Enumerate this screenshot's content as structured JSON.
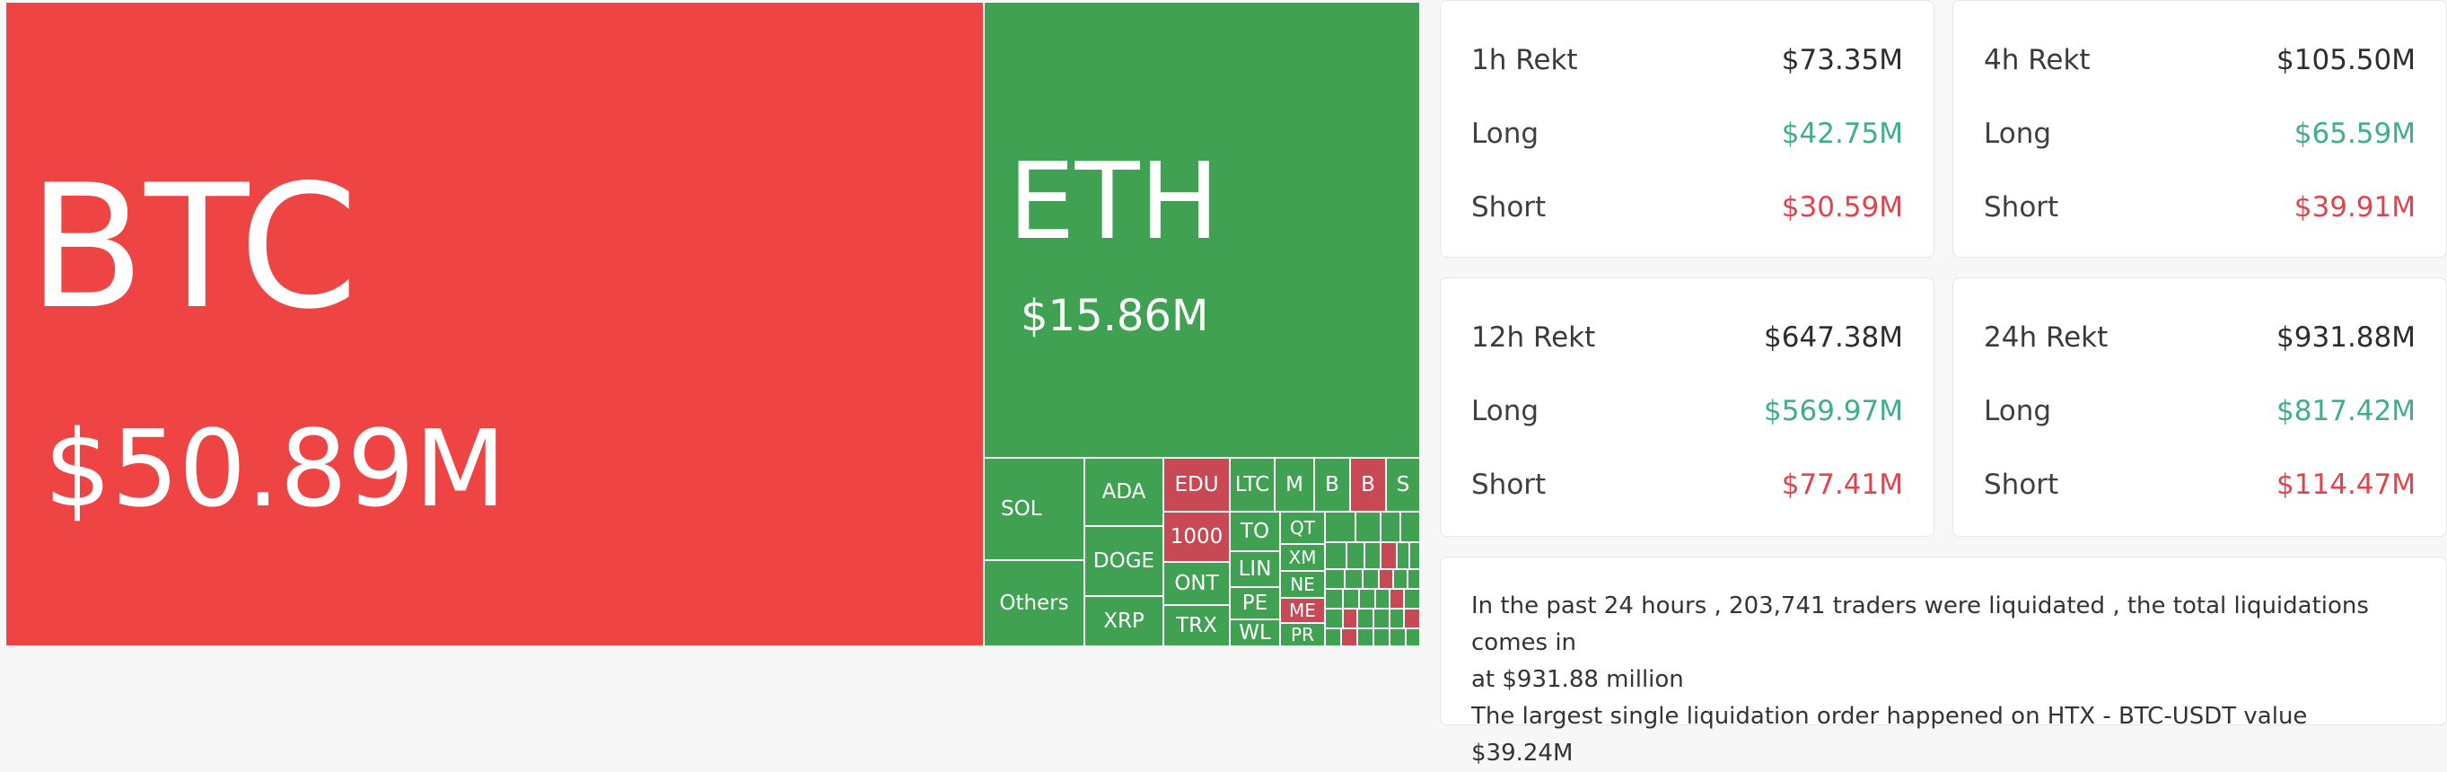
{
  "treemap": {
    "btc": {
      "symbol": "BTC",
      "value": "$50.89M"
    },
    "eth": {
      "symbol": "ETH",
      "value": "$15.86M"
    },
    "small": {
      "sol": "SOL",
      "others": "Others",
      "ada": "ADA",
      "doge": "DOGE",
      "xrp": "XRP",
      "edu": "EDU",
      "k1000": "1000",
      "ont": "ONT",
      "trx": "TRX",
      "ltc": "LTC",
      "m": "M",
      "b1": "B",
      "b2": "B",
      "s": "S",
      "to": "TO",
      "lin": "LIN",
      "pe": "PE",
      "wl": "WL",
      "qt": "QT",
      "xm": "XM",
      "ne": "NE",
      "me": "ME",
      "pr": "PR"
    }
  },
  "colors": {
    "up": "#41a153",
    "down": "#ef4444",
    "down_small": "#c84953",
    "long": "#3fae8a",
    "short": "#e0444e"
  },
  "cards": [
    {
      "title": "1h Rekt",
      "total": "$73.35M",
      "long_label": "Long",
      "long": "$42.75M",
      "short_label": "Short",
      "short": "$30.59M"
    },
    {
      "title": "4h Rekt",
      "total": "$105.50M",
      "long_label": "Long",
      "long": "$65.59M",
      "short_label": "Short",
      "short": "$39.91M"
    },
    {
      "title": "12h Rekt",
      "total": "$647.38M",
      "long_label": "Long",
      "long": "$569.97M",
      "short_label": "Short",
      "short": "$77.41M"
    },
    {
      "title": "24h Rekt",
      "total": "$931.88M",
      "long_label": "Long",
      "long": "$817.42M",
      "short_label": "Short",
      "short": "$114.47M"
    }
  ],
  "summary": {
    "line1": "In the past 24 hours , 203,741 traders were liquidated , the total liquidations comes in",
    "line2": "at $931.88 million",
    "line3": "The largest single liquidation order happened on HTX - BTC-USDT value $39.24M"
  }
}
